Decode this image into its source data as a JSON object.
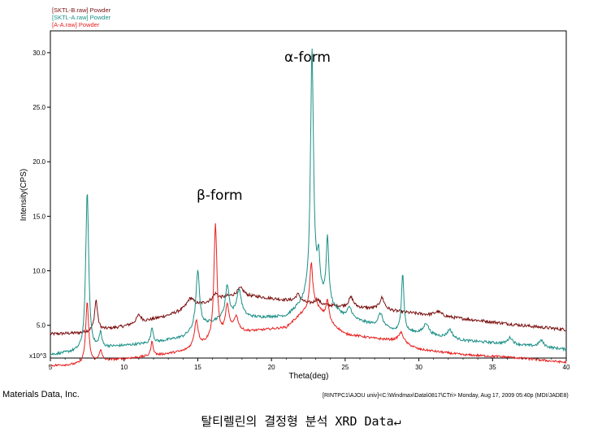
{
  "footer": {
    "left_text": "Materials Data, Inc.",
    "right_text": "[RINTPC1\\AJOU univ]<C:\\Windmax\\Data\\0817\\CTri> Monday, Aug 17, 2009 05:40p (MDI/JADE8)"
  },
  "caption": "탈티렐린의 결정형 분석 XRD Data↵",
  "chart_data": {
    "type": "line",
    "title": "",
    "xlabel": "Theta(deg)",
    "ylabel": "Intensity(CPS)",
    "y_multiplier_label": "x10^3",
    "xlim": [
      5,
      40
    ],
    "ylim": [
      2.0,
      32.0
    ],
    "x_ticks": [
      5,
      10,
      15,
      20,
      25,
      30,
      35,
      40
    ],
    "y_ticks": [
      5.0,
      10.0,
      15.0,
      20.0,
      25.0,
      30.0
    ],
    "y_tick_labels": [
      "5.0",
      "10.0",
      "15.0",
      "20.0",
      "25.0",
      "30.0"
    ],
    "grid": false,
    "legend_position": "top-left",
    "annotations": [
      {
        "text": "α-form",
        "x": 24.6,
        "y": 31.0
      },
      {
        "text": "β-form",
        "x": 16.0,
        "y": 15.4
      }
    ],
    "series": [
      {
        "name": "[SKTL-B.raw] Powder",
        "color": "#7a1010",
        "baseline": [
          [
            5,
            4.2
          ],
          [
            7,
            4.3
          ],
          [
            10,
            4.9
          ],
          [
            13,
            5.9
          ],
          [
            15,
            6.8
          ],
          [
            17,
            7.6
          ],
          [
            19,
            7.6
          ],
          [
            21,
            7.3
          ],
          [
            23,
            6.9
          ],
          [
            25,
            6.7
          ],
          [
            27,
            6.5
          ],
          [
            29,
            6.2
          ],
          [
            31,
            5.9
          ],
          [
            33,
            5.6
          ],
          [
            35,
            5.3
          ],
          [
            37,
            5.0
          ],
          [
            40,
            4.6
          ]
        ],
        "peaks": [
          [
            8.1,
            2.8,
            0.12
          ],
          [
            11.0,
            0.7,
            0.2
          ],
          [
            14.5,
            0.9,
            0.3
          ],
          [
            16.2,
            0.6,
            0.2
          ],
          [
            17.9,
            0.8,
            0.3
          ],
          [
            21.8,
            0.7,
            0.2
          ],
          [
            23.1,
            0.5,
            0.2
          ],
          [
            25.4,
            0.9,
            0.2
          ],
          [
            27.5,
            1.1,
            0.2
          ],
          [
            31.3,
            0.4,
            0.3
          ]
        ],
        "noise": 0.14
      },
      {
        "name": "[SKTL-A.raw] Powder",
        "color": "#1a8f86",
        "baseline": [
          [
            5,
            2.3
          ],
          [
            7,
            2.6
          ],
          [
            9,
            3.0
          ],
          [
            12,
            3.4
          ],
          [
            14,
            3.9
          ],
          [
            15.5,
            5.0
          ],
          [
            17,
            5.8
          ],
          [
            19,
            5.7
          ],
          [
            21,
            5.8
          ],
          [
            22,
            6.8
          ],
          [
            23,
            8.0
          ],
          [
            24,
            6.8
          ],
          [
            25,
            5.7
          ],
          [
            27,
            5.0
          ],
          [
            28.5,
            4.4
          ],
          [
            30,
            4.3
          ],
          [
            33,
            3.6
          ],
          [
            36,
            3.3
          ],
          [
            40,
            2.8
          ]
        ],
        "peaks": [
          [
            7.5,
            14.6,
            0.12
          ],
          [
            8.4,
            1.4,
            0.1
          ],
          [
            11.9,
            1.4,
            0.1
          ],
          [
            15.0,
            5.3,
            0.15
          ],
          [
            17.0,
            2.8,
            0.15
          ],
          [
            17.8,
            2.4,
            0.2
          ],
          [
            22.75,
            22.6,
            0.12
          ],
          [
            23.2,
            3.0,
            0.1
          ],
          [
            23.8,
            6.0,
            0.1
          ],
          [
            25.3,
            1.0,
            0.2
          ],
          [
            27.4,
            1.2,
            0.2
          ],
          [
            28.9,
            5.4,
            0.1
          ],
          [
            30.5,
            1.0,
            0.2
          ],
          [
            32.1,
            0.8,
            0.2
          ],
          [
            36.2,
            0.6,
            0.2
          ],
          [
            38.3,
            0.6,
            0.2
          ]
        ],
        "noise": 0.12
      },
      {
        "name": "[A-A.raw] Powder",
        "color": "#e82020",
        "baseline": [
          [
            5,
            1.3
          ],
          [
            7,
            1.4
          ],
          [
            9,
            1.8
          ],
          [
            12,
            2.2
          ],
          [
            14,
            2.6
          ],
          [
            15.5,
            3.3
          ],
          [
            17,
            4.2
          ],
          [
            19,
            4.5
          ],
          [
            21,
            4.8
          ],
          [
            22,
            6.0
          ],
          [
            23,
            6.8
          ],
          [
            24,
            5.2
          ],
          [
            25,
            4.2
          ],
          [
            27,
            3.8
          ],
          [
            28.5,
            3.6
          ],
          [
            30,
            2.8
          ],
          [
            33,
            2.3
          ],
          [
            36,
            2.1
          ],
          [
            40,
            1.6
          ]
        ],
        "peaks": [
          [
            7.5,
            5.6,
            0.12
          ],
          [
            8.4,
            1.0,
            0.12
          ],
          [
            11.9,
            1.3,
            0.1
          ],
          [
            14.9,
            2.4,
            0.15
          ],
          [
            16.2,
            10.5,
            0.12
          ],
          [
            17.0,
            2.4,
            0.15
          ],
          [
            17.6,
            1.4,
            0.2
          ],
          [
            22.7,
            4.2,
            0.12
          ],
          [
            23.8,
            1.8,
            0.12
          ],
          [
            28.8,
            0.9,
            0.2
          ]
        ],
        "noise": 0.1
      }
    ]
  }
}
